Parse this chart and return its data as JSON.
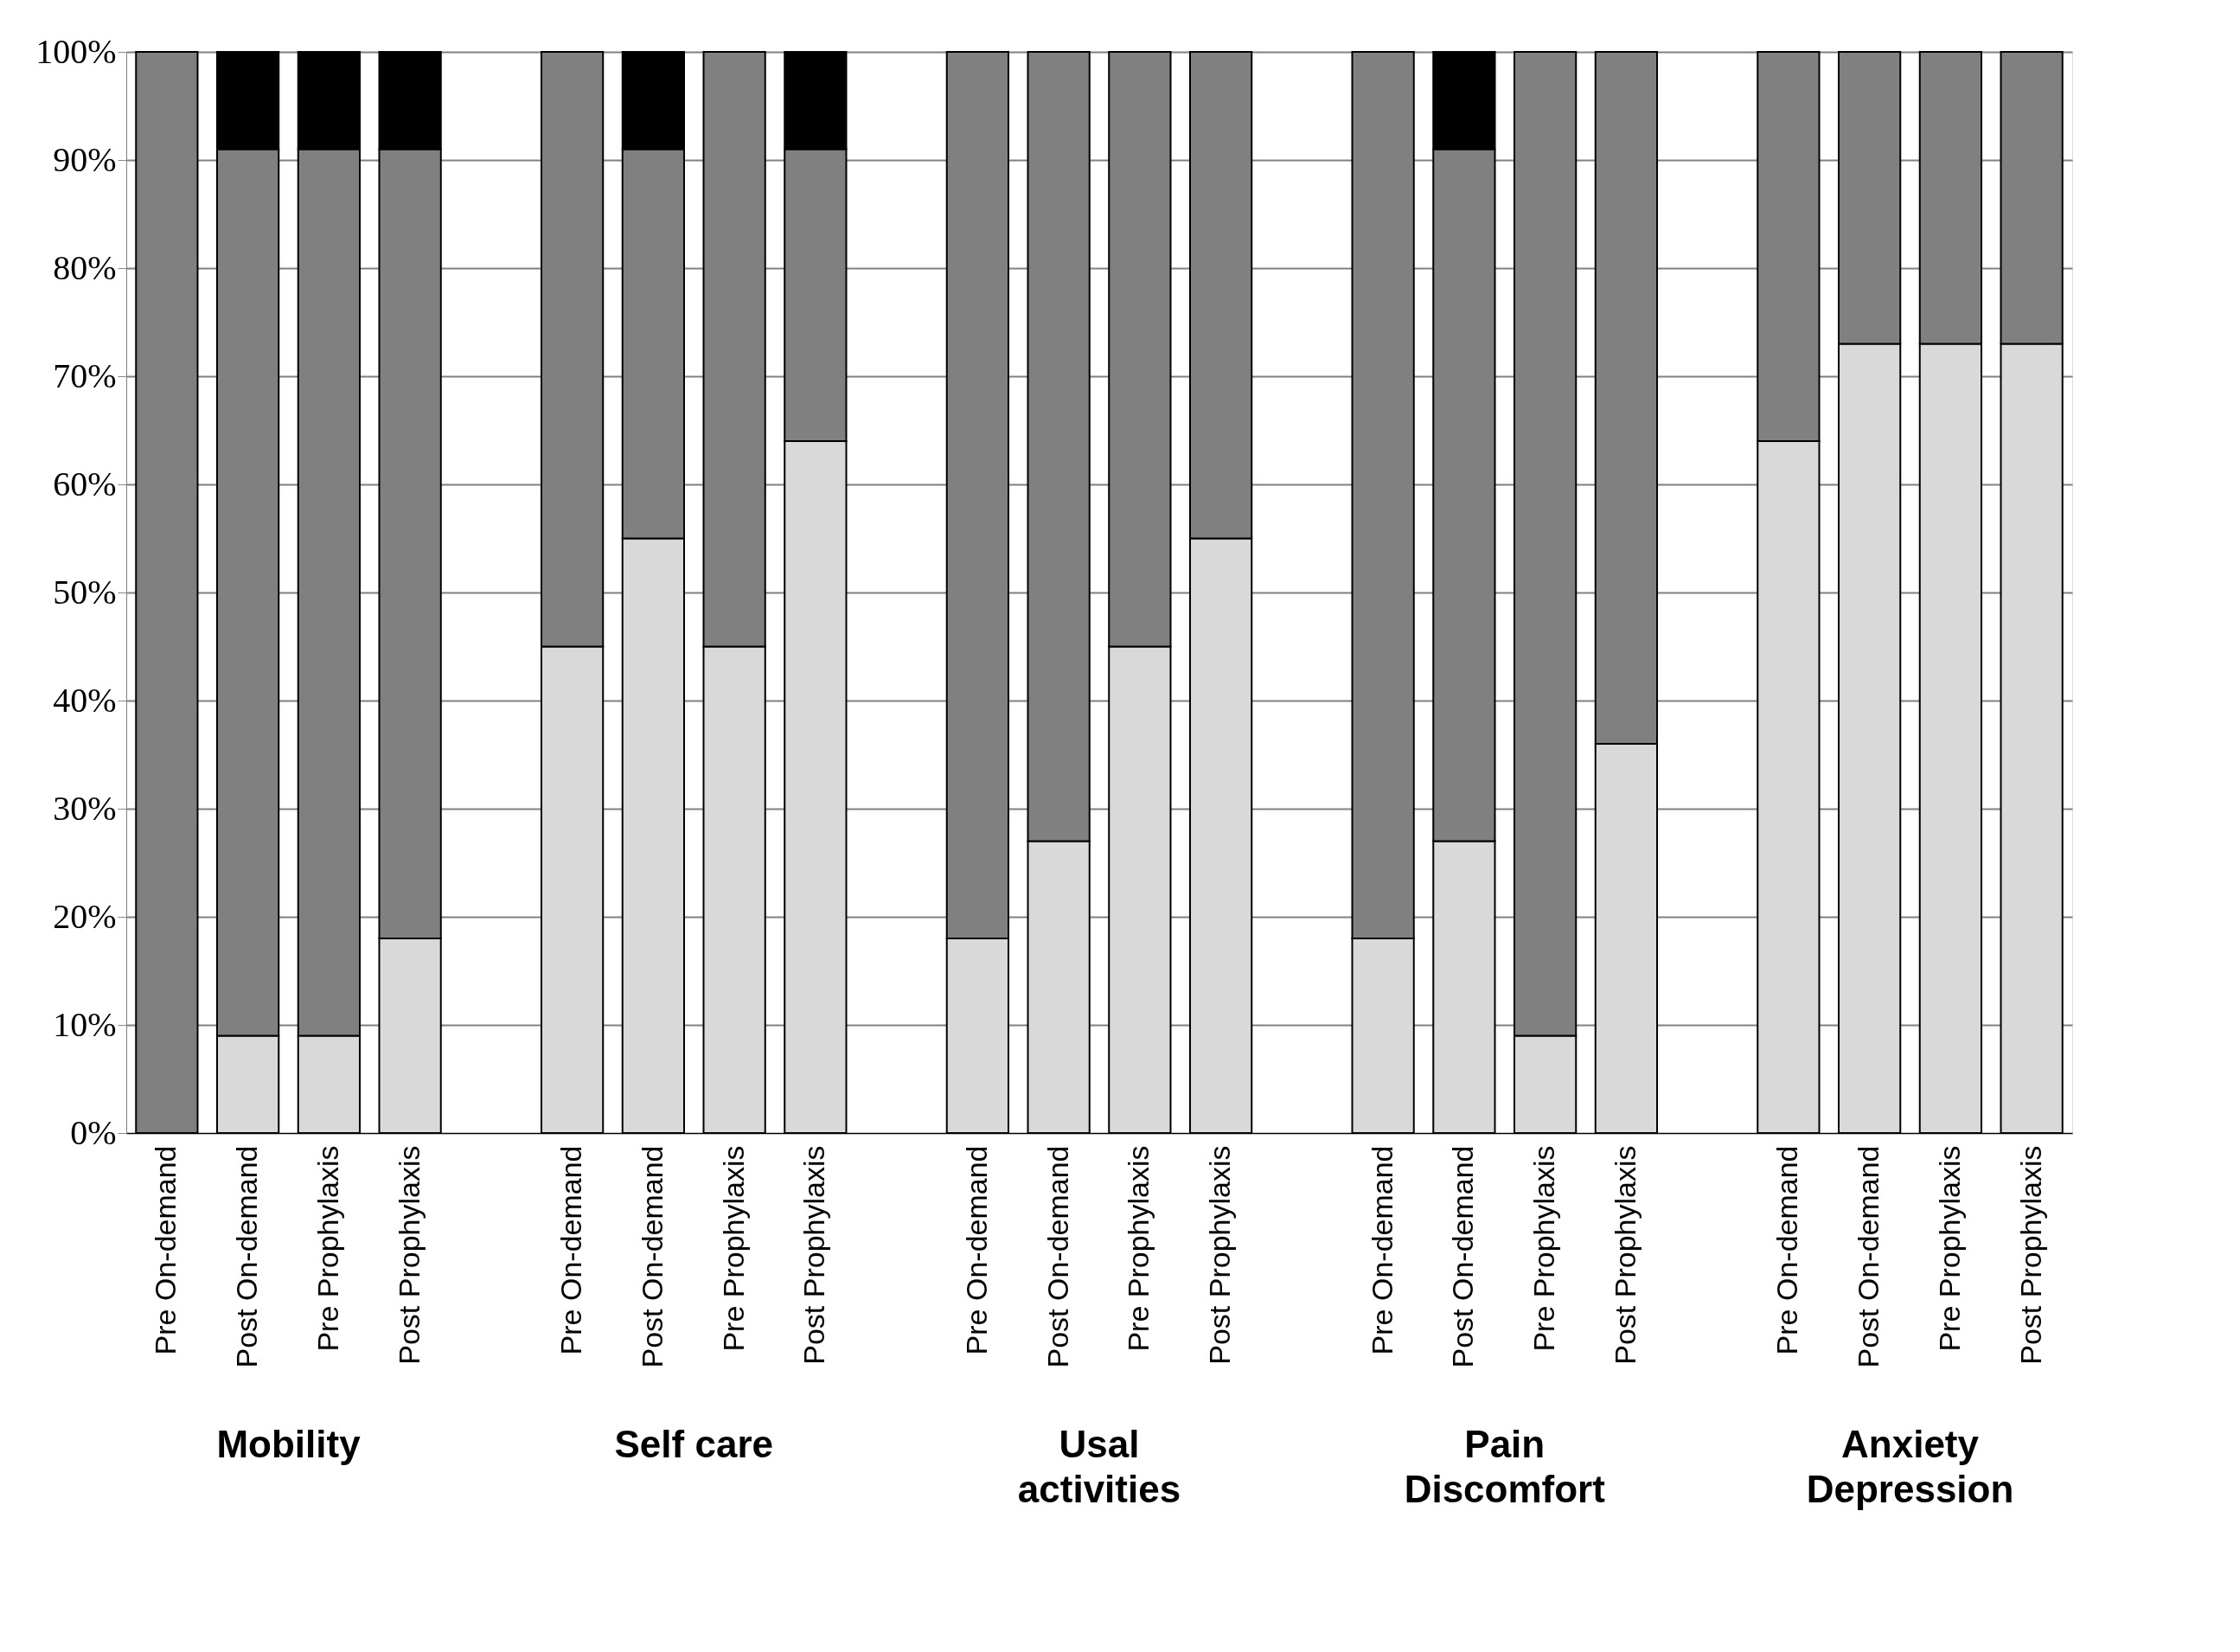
{
  "chart_data": {
    "type": "bar",
    "stacked": true,
    "categories": [
      "Pre On-demand",
      "Post On-demand",
      "Pre Prophylaxis",
      "Post Prophylaxis",
      null,
      "Pre On-demand",
      "Post On-demand",
      "Pre Prophylaxis",
      "Post Prophylaxis",
      null,
      "Pre On-demand",
      "Post On-demand",
      "Pre Prophylaxis",
      "Post Prophylaxis",
      null,
      "Pre On-demand",
      "Post On-demand",
      "Pre Prophylaxis",
      "Post Prophylaxis",
      null,
      "Pre On-demand",
      "Post On-demand",
      "Pre Prophylaxis",
      "Post Prophylaxis"
    ],
    "series": [
      {
        "color": "#d9d9d9",
        "values": [
          0,
          9,
          9,
          18,
          null,
          45,
          55,
          45,
          64,
          null,
          18,
          27,
          45,
          55,
          null,
          18,
          27,
          9,
          36,
          null,
          64,
          73,
          73,
          73
        ]
      },
      {
        "color": "#808080",
        "values": [
          100,
          82,
          82,
          73,
          null,
          55,
          36,
          55,
          27,
          null,
          82,
          73,
          55,
          45,
          null,
          82,
          64,
          91,
          64,
          null,
          36,
          27,
          27,
          27
        ]
      },
      {
        "color": "#000000",
        "values": [
          0,
          9,
          9,
          9,
          null,
          0,
          9,
          0,
          9,
          null,
          0,
          0,
          0,
          0,
          null,
          0,
          9,
          0,
          0,
          null,
          0,
          0,
          0,
          0
        ]
      }
    ],
    "ylim": [
      0,
      100
    ],
    "yticks": [
      {
        "value": 0,
        "label": "0%"
      },
      {
        "value": 10,
        "label": "10%"
      },
      {
        "value": 20,
        "label": "20%"
      },
      {
        "value": 30,
        "label": "30%"
      },
      {
        "value": 40,
        "label": "40%"
      },
      {
        "value": 50,
        "label": "50%"
      },
      {
        "value": 60,
        "label": "60%"
      },
      {
        "value": 70,
        "label": "70%"
      },
      {
        "value": 80,
        "label": "80%"
      },
      {
        "value": 90,
        "label": "90%"
      },
      {
        "value": 100,
        "label": "100%"
      }
    ],
    "grid": "y",
    "legend": false,
    "annotations": [
      "Mobility",
      "Self care",
      "Usal activities",
      "Pain Discomfort",
      "Anxiety Depression"
    ]
  }
}
